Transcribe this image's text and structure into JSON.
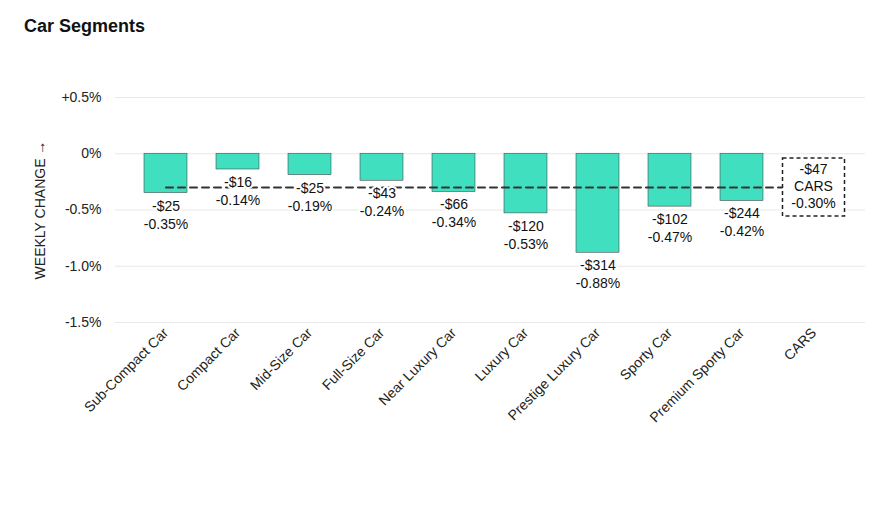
{
  "chart_data": {
    "type": "bar",
    "title": "Car Segments",
    "ylabel": "WEEKLY CHANGE",
    "categories": [
      "Sub-Compact Car",
      "Compact Car",
      "Mid-Size Car",
      "Full-Size Car",
      "Near Luxury Car",
      "Luxury Car",
      "Prestige Luxury Car",
      "Sporty Car",
      "Premium Sporty Car",
      "CARS"
    ],
    "values": [
      -0.35,
      -0.14,
      -0.19,
      -0.24,
      -0.34,
      -0.53,
      -0.88,
      -0.47,
      -0.42,
      null
    ],
    "value_labels": [
      "-0.35%",
      "-0.14%",
      "-0.19%",
      "-0.24%",
      "-0.34%",
      "-0.53%",
      "-0.88%",
      "-0.47%",
      "-0.42%",
      null
    ],
    "dollar_labels": [
      "-$25",
      "-$16",
      "-$25",
      "-$43",
      "-$66",
      "-$120",
      "-$314",
      "-$102",
      "-$244",
      null
    ],
    "average": {
      "name": "CARS",
      "value": -0.3,
      "value_label": "-0.30%",
      "dollar_label": "-$47"
    },
    "color": "#40dfc0",
    "ylim": [
      -1.5,
      0.5
    ],
    "yticks": [
      {
        "value": 0.5,
        "label": "+0.5%"
      },
      {
        "value": 0,
        "label": "0%"
      },
      {
        "value": -0.5,
        "label": "-0.5%"
      },
      {
        "value": -1,
        "label": "-1.0%"
      },
      {
        "value": -1.5,
        "label": "-1.5%"
      }
    ],
    "grid": true,
    "data_labels": true
  }
}
